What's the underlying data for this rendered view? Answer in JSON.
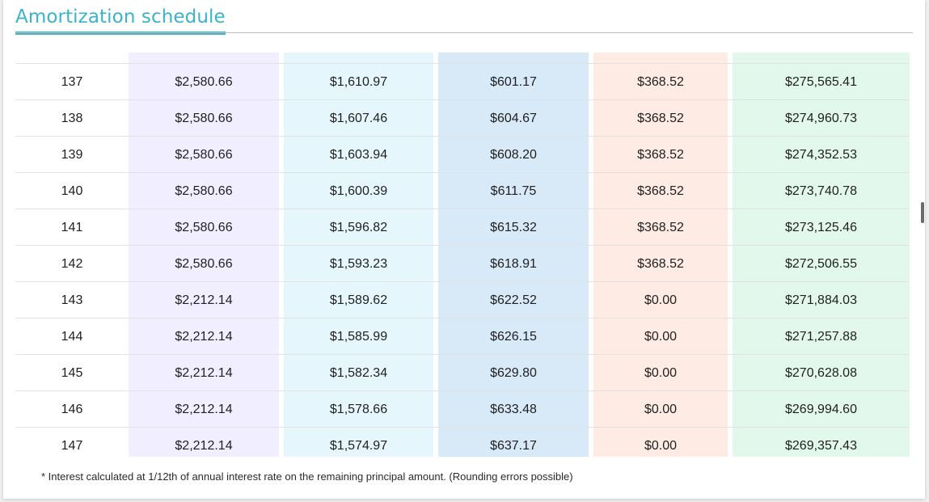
{
  "title": "Amortization schedule",
  "columns_bg": [
    "#ffffff",
    "#f1efff",
    "#e5f7fd",
    "#d8e9f8",
    "#fdebe4",
    "#e2f8ec"
  ],
  "rows": [
    {
      "n": "137",
      "payment": "$2,580.66",
      "interest": "$1,610.97",
      "principal": "$601.17",
      "extra": "$368.52",
      "balance": "$275,565.41"
    },
    {
      "n": "138",
      "payment": "$2,580.66",
      "interest": "$1,607.46",
      "principal": "$604.67",
      "extra": "$368.52",
      "balance": "$274,960.73"
    },
    {
      "n": "139",
      "payment": "$2,580.66",
      "interest": "$1,603.94",
      "principal": "$608.20",
      "extra": "$368.52",
      "balance": "$274,352.53"
    },
    {
      "n": "140",
      "payment": "$2,580.66",
      "interest": "$1,600.39",
      "principal": "$611.75",
      "extra": "$368.52",
      "balance": "$273,740.78"
    },
    {
      "n": "141",
      "payment": "$2,580.66",
      "interest": "$1,596.82",
      "principal": "$615.32",
      "extra": "$368.52",
      "balance": "$273,125.46"
    },
    {
      "n": "142",
      "payment": "$2,580.66",
      "interest": "$1,593.23",
      "principal": "$618.91",
      "extra": "$368.52",
      "balance": "$272,506.55"
    },
    {
      "n": "143",
      "payment": "$2,212.14",
      "interest": "$1,589.62",
      "principal": "$622.52",
      "extra": "$0.00",
      "balance": "$271,884.03"
    },
    {
      "n": "144",
      "payment": "$2,212.14",
      "interest": "$1,585.99",
      "principal": "$626.15",
      "extra": "$0.00",
      "balance": "$271,257.88"
    },
    {
      "n": "145",
      "payment": "$2,212.14",
      "interest": "$1,582.34",
      "principal": "$629.80",
      "extra": "$0.00",
      "balance": "$270,628.08"
    },
    {
      "n": "146",
      "payment": "$2,212.14",
      "interest": "$1,578.66",
      "principal": "$633.48",
      "extra": "$0.00",
      "balance": "$269,994.60"
    },
    {
      "n": "147",
      "payment": "$2,212.14",
      "interest": "$1,574.97",
      "principal": "$637.17",
      "extra": "$0.00",
      "balance": "$269,357.43"
    }
  ],
  "footnote": "* Interest calculated at 1/12th of annual interest rate on the remaining principal amount. (Rounding errors possible)"
}
